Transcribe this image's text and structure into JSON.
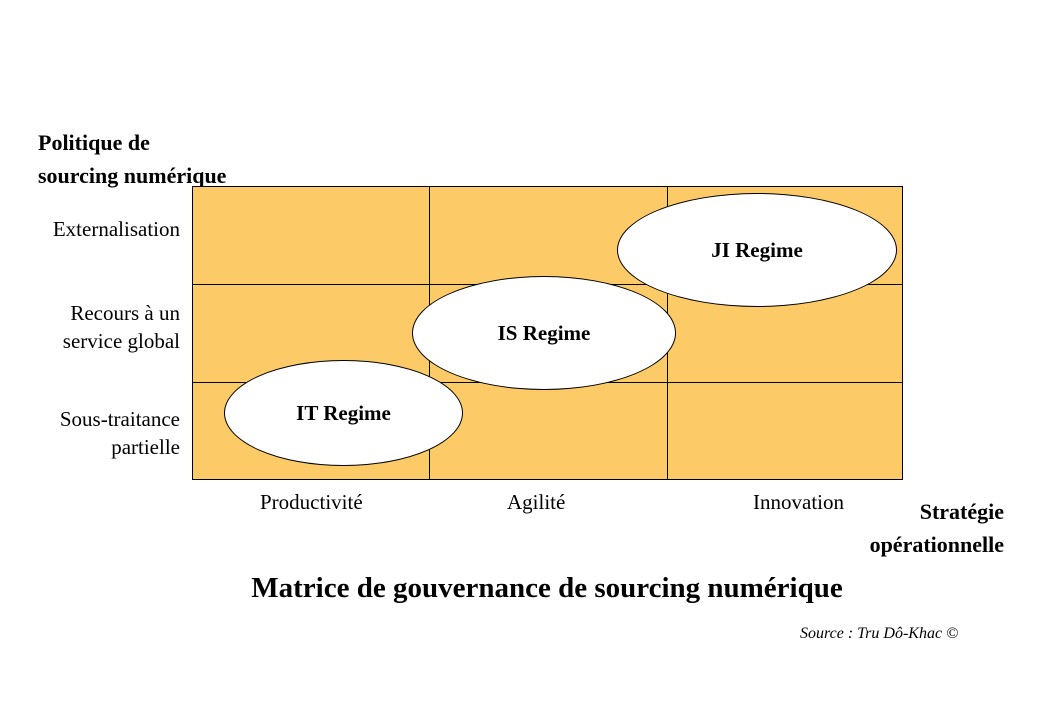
{
  "y_axis": {
    "title_line1": "Politique de",
    "title_line2": "sourcing numérique",
    "rows": [
      {
        "lines": [
          "Externalisation"
        ]
      },
      {
        "lines": [
          "Recours à un",
          "service global"
        ]
      },
      {
        "lines": [
          "Sous-traitance",
          "partielle"
        ]
      }
    ]
  },
  "x_axis": {
    "title_line1": "Stratégie",
    "title_line2": "opérationnelle",
    "columns": [
      "Productivité",
      "Agilité",
      "Innovation"
    ]
  },
  "regimes": [
    {
      "label": "IT Regime",
      "column": "Productivité",
      "row": "Sous-traitance partielle"
    },
    {
      "label": "IS Regime",
      "column": "Agilité",
      "row": "Recours à un service global"
    },
    {
      "label": "JI Regime",
      "column": "Innovation",
      "row": "Externalisation"
    }
  ],
  "title": "Matrice de gouvernance de sourcing numérique",
  "source": "Source : Tru Dô-Khac ©",
  "colors": {
    "grid_fill": "#fcca66",
    "ellipse_fill": "#ffffff",
    "line": "#000000"
  }
}
